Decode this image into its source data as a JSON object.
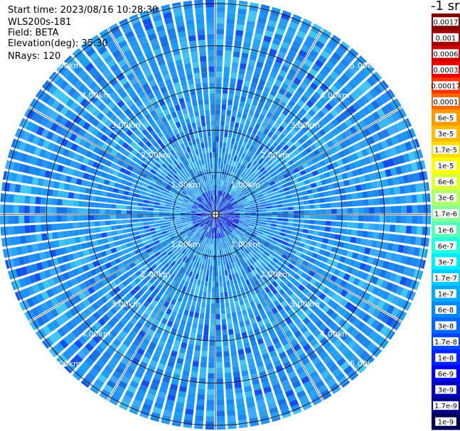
{
  "header": {
    "start_time": "Start time: 2023/08/16 10:28:30",
    "instrument": "WLS200s-181",
    "field": "Field: BETA",
    "elevation": "Elevation(deg): 35.30",
    "nrays": "NRays: 120"
  },
  "colorbar": {
    "title": "-1 sr",
    "labels": [
      "0.0017",
      "0.001",
      "0.0006",
      "0.0003",
      "0.00017",
      "0.0001",
      "6e-5",
      "3e-5",
      "1.7e-5",
      "1e-5",
      "6e-6",
      "3e-6",
      "1.7e-6",
      "1e-6",
      "6e-7",
      "3e-7",
      "1.7e-7",
      "1e-7",
      "6e-8",
      "3e-8",
      "1.7e-8",
      "1e-8",
      "6e-9",
      "3e-9",
      "1.7e-9",
      "1e-9"
    ],
    "colors": [
      "#800000",
      "#a00000",
      "#cc0000",
      "#ee0000",
      "#ff3300",
      "#ff6600",
      "#ff9900",
      "#ffbb00",
      "#ffdd00",
      "#ffff00",
      "#ddff33",
      "#b3ff66",
      "#88ff99",
      "#55ffbb",
      "#22ffdd",
      "#00eeff",
      "#00ccff",
      "#00aaff",
      "#0088ff",
      "#0066ff",
      "#0044ff",
      "#0022ff",
      "#0000ee",
      "#0000bb",
      "#000088",
      "#000055"
    ]
  },
  "chart_data": {
    "type": "heatmap",
    "projection": "polar (PPI scan)",
    "variable": "BETA",
    "n_rays": 120,
    "elevation_deg": 35.3,
    "range_rings_km": [
      1,
      2,
      3,
      4,
      5
    ],
    "ring_labels": [
      "1.00km",
      "2.00km",
      "3.00km",
      "4.00km",
      "5.00km"
    ],
    "label_diagonals": [
      "NE",
      "SE",
      "SW",
      "NW"
    ],
    "dominant_value_range": [
      "1.7e-8",
      "1.7e-7"
    ],
    "colorscale": "log",
    "grid": true
  }
}
